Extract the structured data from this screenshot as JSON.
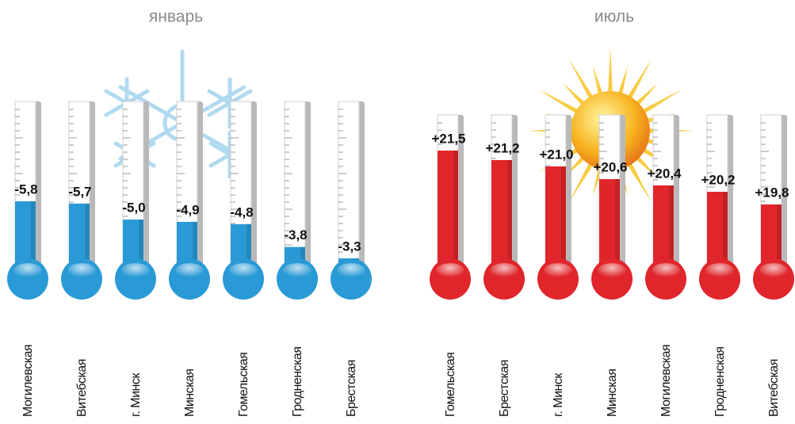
{
  "chart_data": [
    {
      "type": "bar",
      "title": "январь",
      "categories": [
        "Могилевская",
        "Витебская",
        "г. Минск",
        "Минская",
        "Гомельская",
        "Гродненская",
        "Брестская"
      ],
      "values": [
        -5.8,
        -5.7,
        -5.0,
        -4.9,
        -4.8,
        -3.8,
        -3.3
      ],
      "value_labels": [
        "-5,8",
        "-5,7",
        "-5,0",
        "-4,9",
        "-4,8",
        "-3,8",
        "-3,3"
      ],
      "color": "#2a9ad6"
    },
    {
      "type": "bar",
      "title": "июль",
      "categories": [
        "Гомельская",
        "Брестская",
        "г. Минск",
        "Минская",
        "Могилевская",
        "Гродненская",
        "Витебская"
      ],
      "values": [
        21.5,
        21.2,
        21.0,
        20.6,
        20.4,
        20.2,
        19.8
      ],
      "value_labels": [
        "+21,5",
        "+21,2",
        "+21,0",
        "+20,6",
        "+20,4",
        "+20,2",
        "+19,8"
      ],
      "color": "#e0262b"
    }
  ]
}
